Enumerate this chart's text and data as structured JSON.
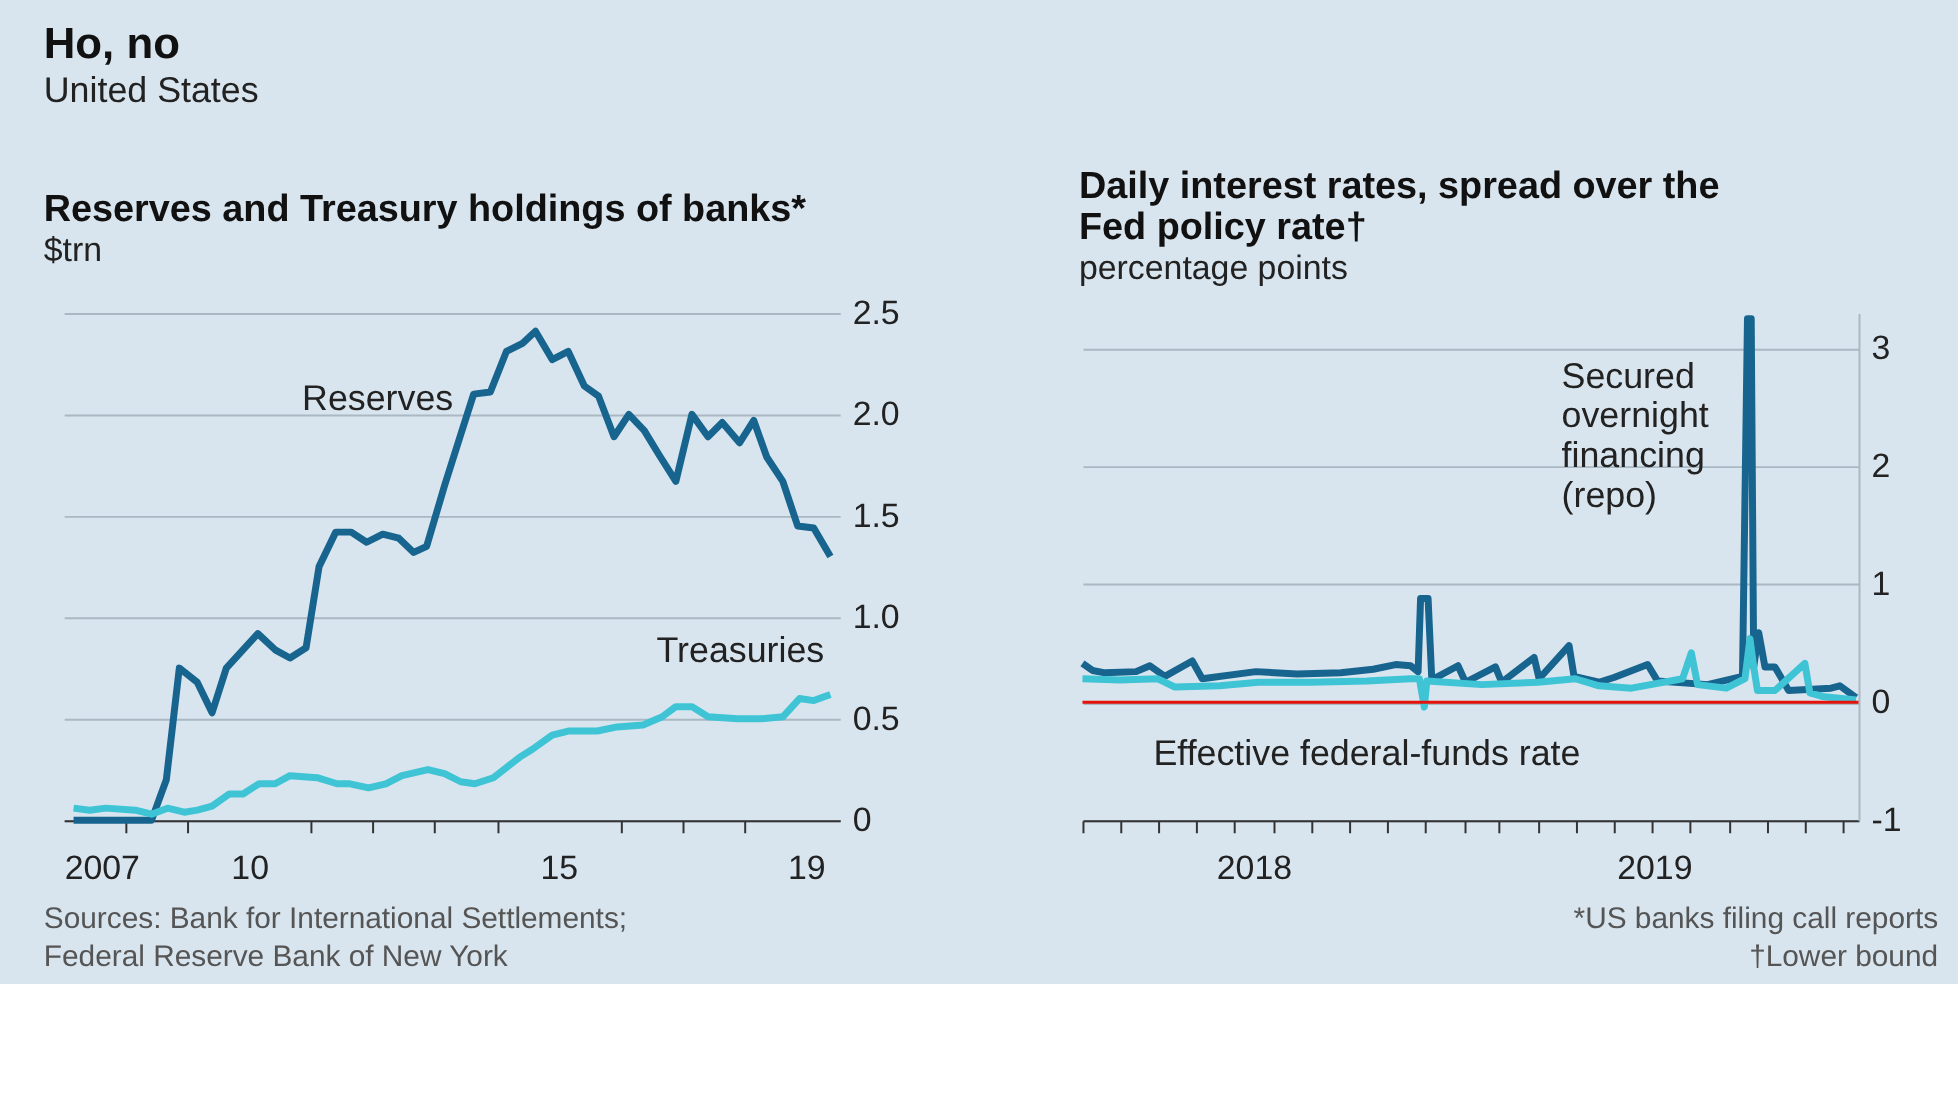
{
  "chart_data": [
    {
      "type": "line",
      "title": "Reserves and Treasury holdings of banks*",
      "ylabel": "$trn",
      "xlim": [
        2007,
        2019.55
      ],
      "ylim": [
        0,
        2.5
      ],
      "xticks": [
        2007,
        {
          "value": 2008,
          "label": null
        },
        {
          "value": 2009,
          "label": null
        },
        {
          "value": 2010,
          "label": "10"
        },
        {
          "value": 2011,
          "label": null
        },
        {
          "value": 2012,
          "label": null
        },
        {
          "value": 2013,
          "label": null
        },
        {
          "value": 2014,
          "label": null
        },
        {
          "value": 2015,
          "label": "15"
        },
        {
          "value": 2016,
          "label": null
        },
        {
          "value": 2017,
          "label": null
        },
        {
          "value": 2018,
          "label": null
        },
        {
          "value": 2019,
          "label": "19"
        }
      ],
      "yticks": [
        0,
        0.5,
        {
          "value": 1,
          "label": "1.0"
        },
        1.5,
        {
          "value": 2,
          "label": "2.0"
        },
        2.5
      ],
      "grid": "y",
      "legend": false,
      "series": [
        {
          "name": "Reserves",
          "color": "#17648f",
          "x": [
            2007.16,
            2008.42,
            2008.66,
            2008.87,
            2009.16,
            2009.4,
            2009.63,
            2010.14,
            2010.42,
            2010.66,
            2010.92,
            2011.13,
            2011.4,
            2011.65,
            2011.9,
            2012.16,
            2012.42,
            2012.66,
            2012.87,
            2013.16,
            2013.42,
            2013.63,
            2013.9,
            2014.16,
            2014.42,
            2014.63,
            2014.9,
            2015.16,
            2015.42,
            2015.65,
            2015.9,
            2016.14,
            2016.39,
            2016.63,
            2016.9,
            2017.16,
            2017.42,
            2017.65,
            2017.93,
            2018.16,
            2018.37,
            2018.63,
            2018.87,
            2019.13,
            2019.4
          ],
          "values": [
            0,
            0,
            0.2,
            0.75,
            0.68,
            0.53,
            0.75,
            0.92,
            0.84,
            0.8,
            0.85,
            1.25,
            1.42,
            1.42,
            1.37,
            1.41,
            1.39,
            1.32,
            1.35,
            1.65,
            1.9,
            2.1,
            2.11,
            2.31,
            2.35,
            2.41,
            2.27,
            2.31,
            2.14,
            2.09,
            1.89,
            2.0,
            1.92,
            1.8,
            1.67,
            2.0,
            1.89,
            1.96,
            1.86,
            1.97,
            1.79,
            1.67,
            1.45,
            1.44,
            1.3
          ]
        },
        {
          "name": "Treasuries",
          "color": "#3fc4d5",
          "x": [
            2007.16,
            2007.42,
            2007.68,
            2008.16,
            2008.42,
            2008.68,
            2008.95,
            2009.16,
            2009.4,
            2009.68,
            2009.9,
            2010.16,
            2010.42,
            2010.66,
            2011.1,
            2011.42,
            2011.63,
            2011.93,
            2012.21,
            2012.47,
            2012.89,
            2013.16,
            2013.42,
            2013.65,
            2013.95,
            2014.37,
            2014.58,
            2014.9,
            2015.16,
            2015.63,
            2015.95,
            2016.37,
            2016.68,
            2016.9,
            2017.16,
            2017.42,
            2017.9,
            2018.26,
            2018.63,
            2018.9,
            2019.13,
            2019.4
          ],
          "values": [
            0.06,
            0.05,
            0.06,
            0.05,
            0.03,
            0.06,
            0.04,
            0.05,
            0.07,
            0.13,
            0.13,
            0.18,
            0.18,
            0.22,
            0.21,
            0.18,
            0.18,
            0.16,
            0.18,
            0.22,
            0.25,
            0.23,
            0.19,
            0.18,
            0.21,
            0.31,
            0.35,
            0.42,
            0.44,
            0.44,
            0.46,
            0.47,
            0.51,
            0.56,
            0.56,
            0.51,
            0.5,
            0.5,
            0.51,
            0.6,
            0.59,
            0.62
          ]
        }
      ],
      "annotations": [
        "Ho, no",
        "United States",
        "Sources: Bank for International Settlements;",
        "Federal Reserve Bank of New York"
      ]
    },
    {
      "type": "line",
      "title": "Daily interest rates, spread over the Fed policy rate†",
      "ylabel": "percentage points",
      "xlim": [
        "2018-04-01",
        "2019-12-14"
      ],
      "ylim": [
        -1,
        3.3
      ],
      "xticks": [
        {
          "value": "2018-04-01",
          "label": null
        },
        {
          "value": "2018-05-01",
          "label": null
        },
        {
          "value": "2018-06-01",
          "label": null
        },
        {
          "value": "2018-07-01",
          "label": null
        },
        {
          "value": "2018-08-01",
          "label": null
        },
        {
          "value": "2018-08-16",
          "label": "2018"
        },
        {
          "value": "2018-09-01",
          "label": null
        },
        {
          "value": "2018-10-01",
          "label": null
        },
        {
          "value": "2018-11-01",
          "label": null
        },
        {
          "value": "2018-12-01",
          "label": null
        },
        {
          "value": "2019-01-01",
          "label": null
        },
        {
          "value": "2019-02-01",
          "label": null
        },
        {
          "value": "2019-03-01",
          "label": null
        },
        {
          "value": "2019-04-01",
          "label": null
        },
        {
          "value": "2019-05-01",
          "label": null
        },
        {
          "value": "2019-06-01",
          "label": null
        },
        {
          "value": "2019-07-01",
          "label": null
        },
        {
          "value": "2019-07-03",
          "label": "2019"
        },
        {
          "value": "2019-08-01",
          "label": null
        },
        {
          "value": "2019-09-01",
          "label": null
        },
        {
          "value": "2019-10-01",
          "label": null
        },
        {
          "value": "2019-11-01",
          "label": null
        },
        {
          "value": "2019-12-01",
          "label": null
        }
      ],
      "yticks": [
        -1,
        0,
        1,
        2,
        3
      ],
      "grid": "y",
      "legend": false,
      "ref_lines": [
        {
          "axis": "y",
          "value": 0,
          "color": "#e3120b"
        }
      ],
      "series": [
        {
          "name": "Secured overnight financing (repo)",
          "color": "#17648f",
          "x": [
            "2018-04-01",
            "2018-04-09",
            "2018-04-19",
            "2018-05-14",
            "2018-05-25",
            "2018-06-06",
            "2018-06-28",
            "2018-07-06",
            "2018-08-18",
            "2018-09-20",
            "2018-10-25",
            "2018-11-20",
            "2018-12-08",
            "2018-12-20",
            "2018-12-26",
            "2018-12-28",
            "2019-01-03",
            "2019-01-06",
            "2019-01-27",
            "2019-02-02",
            "2019-02-26",
            "2019-03-03",
            "2019-03-29",
            "2019-04-02",
            "2019-04-26",
            "2019-04-30",
            "2019-05-20",
            "2019-06-01",
            "2019-06-28",
            "2019-07-06",
            "2019-08-15",
            "2019-09-12",
            "2019-09-16",
            "2019-09-19",
            "2019-09-21",
            "2019-09-25",
            "2019-09-30",
            "2019-10-08",
            "2019-10-19",
            "2019-11-22",
            "2019-11-29",
            "2019-12-12"
          ],
          "values": [
            0.33,
            0.27,
            0.25,
            0.26,
            0.31,
            0.22,
            0.35,
            0.2,
            0.26,
            0.24,
            0.25,
            0.28,
            0.32,
            0.31,
            0.26,
            0.88,
            0.88,
            0.19,
            0.31,
            0.17,
            0.3,
            0.17,
            0.38,
            0.2,
            0.48,
            0.22,
            0.17,
            0.21,
            0.32,
            0.18,
            0.15,
            0.22,
            3.25,
            3.25,
            0.3,
            0.59,
            0.3,
            0.3,
            0.1,
            0.12,
            0.14,
            0.04
          ]
        },
        {
          "name": "Effective federal-funds rate",
          "color": "#3fc4d5",
          "x": [
            "2018-04-01",
            "2018-05-01",
            "2018-05-31",
            "2018-06-14",
            "2018-07-20",
            "2018-08-20",
            "2018-10-01",
            "2018-11-15",
            "2018-12-20",
            "2018-12-27",
            "2018-12-31",
            "2019-01-02",
            "2019-02-15",
            "2019-04-01",
            "2019-05-01",
            "2019-05-20",
            "2019-06-15",
            "2019-07-26",
            "2019-08-02",
            "2019-08-07",
            "2019-08-30",
            "2019-09-14",
            "2019-09-18",
            "2019-09-21",
            "2019-09-24",
            "2019-10-08",
            "2019-11-01",
            "2019-11-05",
            "2019-11-15",
            "2019-12-12"
          ],
          "values": [
            0.2,
            0.19,
            0.2,
            0.13,
            0.14,
            0.17,
            0.17,
            0.18,
            0.2,
            0.2,
            -0.04,
            0.18,
            0.15,
            0.17,
            0.2,
            0.14,
            0.12,
            0.2,
            0.42,
            0.15,
            0.12,
            0.2,
            0.54,
            0.3,
            0.1,
            0.1,
            0.33,
            0.08,
            0.05,
            0.02
          ]
        }
      ],
      "annotations": [
        "*US banks filing call reports",
        "†Lower bound"
      ]
    }
  ]
}
